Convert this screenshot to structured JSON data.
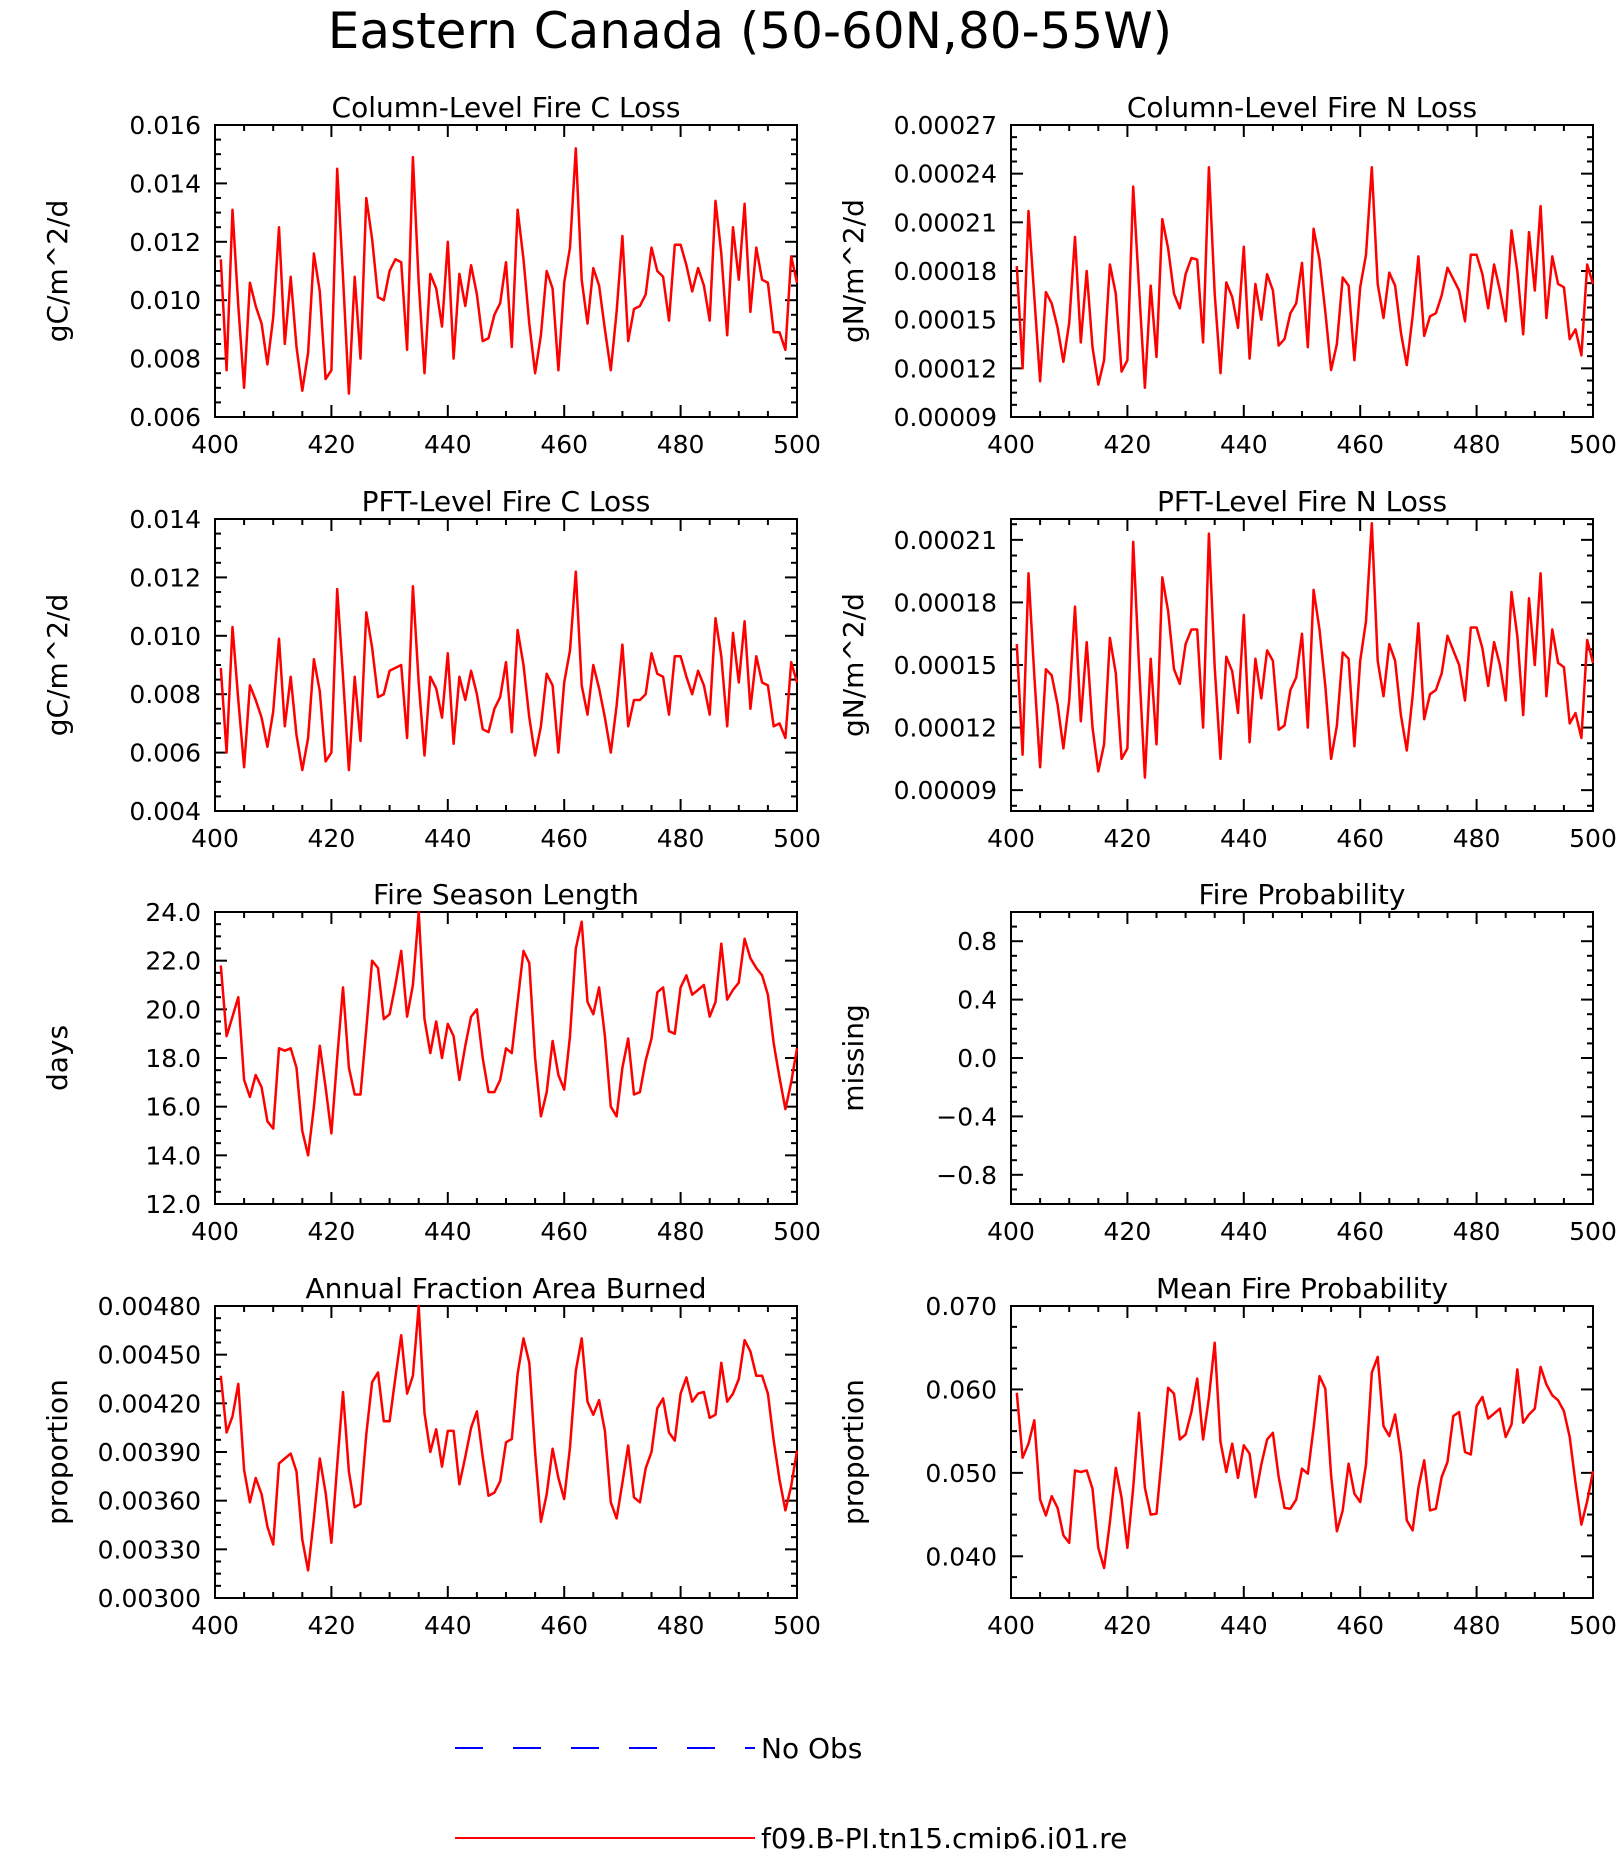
{
  "title": "Eastern Canada (50-60N,80-55W)",
  "colors": {
    "model": "#ff0000",
    "obs": "#0000ff"
  },
  "legend": {
    "position": "bottom-center",
    "entries": [
      {
        "label": "No Obs",
        "style": "dashed",
        "color": "#0000ff"
      },
      {
        "label": "f09.B-PI.tn15.cmip6.j01.re",
        "style": "solid",
        "color": "#ff0000"
      }
    ]
  },
  "chart_data": [
    {
      "type": "line",
      "title": "Column-Level Fire C Loss",
      "ylabel": "gC/m^2/d",
      "xlim": [
        400,
        500
      ],
      "ylim": [
        0.006,
        0.016
      ],
      "xticks": [
        "400",
        "420",
        "440",
        "460",
        "480",
        "500"
      ],
      "yticks": [
        "0.006",
        "0.008",
        "0.010",
        "0.012",
        "0.014",
        "0.016"
      ],
      "x_start": 401,
      "series": [
        {
          "values": [
            0.0114,
            0.0076,
            0.0131,
            0.0098,
            0.007,
            0.0106,
            0.0098,
            0.0092,
            0.0078,
            0.0094,
            0.0125,
            0.0085,
            0.0108,
            0.0084,
            0.0069,
            0.0082,
            0.0116,
            0.0103,
            0.0073,
            0.0076,
            0.0145,
            0.0108,
            0.0068,
            0.0108,
            0.008,
            0.0135,
            0.0121,
            0.0101,
            0.01,
            0.011,
            0.0114,
            0.0113,
            0.0083,
            0.0149,
            0.0106,
            0.0075,
            0.0109,
            0.0104,
            0.0091,
            0.012,
            0.008,
            0.0109,
            0.0098,
            0.0112,
            0.0102,
            0.0086,
            0.0087,
            0.0095,
            0.0099,
            0.0113,
            0.0084,
            0.0131,
            0.0114,
            0.0092,
            0.0075,
            0.0088,
            0.011,
            0.0104,
            0.0076,
            0.0106,
            0.0118,
            0.0152,
            0.0107,
            0.0092,
            0.0111,
            0.0105,
            0.009,
            0.0076,
            0.0096,
            0.0122,
            0.0086,
            0.0097,
            0.0098,
            0.0102,
            0.0118,
            0.011,
            0.0108,
            0.0093,
            0.0119,
            0.0119,
            0.0112,
            0.0103,
            0.0111,
            0.0105,
            0.0093,
            0.0134,
            0.0116,
            0.0088,
            0.0125,
            0.0107,
            0.0133,
            0.0096,
            0.0118,
            0.0107,
            0.0106,
            0.0089,
            0.0089,
            0.0083,
            0.0115,
            0.0106
          ]
        }
      ]
    },
    {
      "type": "line",
      "title": "Column-Level Fire N Loss",
      "ylabel": "gN/m^2/d",
      "xlim": [
        400,
        500
      ],
      "ylim": [
        9e-05,
        0.00027
      ],
      "xticks": [
        "400",
        "420",
        "440",
        "460",
        "480",
        "500"
      ],
      "yticks": [
        "0.00009",
        "0.00012",
        "0.00015",
        "0.00018",
        "0.00021",
        "0.00024",
        "0.00027"
      ],
      "x_start": 401,
      "series": [
        {
          "values": [
            0.000183,
            0.00012,
            0.000217,
            0.000164,
            0.000112,
            0.000167,
            0.00016,
            0.000145,
            0.000124,
            0.000148,
            0.000201,
            0.000136,
            0.00018,
            0.000133,
            0.00011,
            0.000125,
            0.000184,
            0.000166,
            0.000118,
            0.000125,
            0.000232,
            0.00017,
            0.000108,
            0.000171,
            0.000127,
            0.000212,
            0.000194,
            0.000166,
            0.000157,
            0.000178,
            0.000188,
            0.000187,
            0.000136,
            0.000244,
            0.000166,
            0.000117,
            0.000173,
            0.000164,
            0.000145,
            0.000195,
            0.000126,
            0.000172,
            0.00015,
            0.000178,
            0.000168,
            0.000134,
            0.000138,
            0.000154,
            0.00016,
            0.000185,
            0.000133,
            0.000206,
            0.000187,
            0.000155,
            0.000119,
            0.000135,
            0.000176,
            0.000171,
            0.000125,
            0.00017,
            0.00019,
            0.000244,
            0.000172,
            0.000151,
            0.000179,
            0.000171,
            0.000142,
            0.000122,
            0.000152,
            0.000189,
            0.00014,
            0.000152,
            0.000154,
            0.000165,
            0.000182,
            0.000175,
            0.000168,
            0.000149,
            0.00019,
            0.00019,
            0.000178,
            0.000157,
            0.000184,
            0.000168,
            0.000149,
            0.000205,
            0.00018,
            0.000141,
            0.000204,
            0.000168,
            0.00022,
            0.000151,
            0.000189,
            0.000172,
            0.00017,
            0.000138,
            0.000144,
            0.000128,
            0.000184,
            0.000172
          ]
        }
      ]
    },
    {
      "type": "line",
      "title": "PFT-Level Fire C Loss",
      "ylabel": "gC/m^2/d",
      "xlim": [
        400,
        500
      ],
      "ylim": [
        0.004,
        0.014
      ],
      "xticks": [
        "400",
        "420",
        "440",
        "460",
        "480",
        "500"
      ],
      "yticks": [
        "0.004",
        "0.006",
        "0.008",
        "0.010",
        "0.012",
        "0.014"
      ],
      "x_start": 401,
      "series": [
        {
          "values": [
            0.0089,
            0.006,
            0.0103,
            0.0078,
            0.0055,
            0.0083,
            0.0078,
            0.0072,
            0.0062,
            0.0074,
            0.0099,
            0.0069,
            0.0086,
            0.0066,
            0.0054,
            0.0065,
            0.0092,
            0.0081,
            0.0057,
            0.006,
            0.0116,
            0.0086,
            0.0054,
            0.0086,
            0.0064,
            0.0108,
            0.0096,
            0.0079,
            0.008,
            0.0088,
            0.0089,
            0.009,
            0.0065,
            0.0117,
            0.0084,
            0.0059,
            0.0086,
            0.0082,
            0.0072,
            0.0094,
            0.0063,
            0.0086,
            0.0078,
            0.0088,
            0.008,
            0.0068,
            0.0067,
            0.0075,
            0.0079,
            0.0091,
            0.0067,
            0.0102,
            0.009,
            0.0072,
            0.0059,
            0.0069,
            0.0087,
            0.0083,
            0.006,
            0.0084,
            0.0095,
            0.0122,
            0.0083,
            0.0073,
            0.009,
            0.0082,
            0.0072,
            0.006,
            0.0076,
            0.0097,
            0.0069,
            0.0078,
            0.0078,
            0.008,
            0.0094,
            0.0087,
            0.0086,
            0.0073,
            0.0093,
            0.0093,
            0.0086,
            0.008,
            0.0088,
            0.0083,
            0.0073,
            0.0106,
            0.0093,
            0.0069,
            0.0101,
            0.0084,
            0.0105,
            0.0075,
            0.0093,
            0.0084,
            0.0083,
            0.0069,
            0.007,
            0.0065,
            0.0091,
            0.0084
          ]
        }
      ]
    },
    {
      "type": "line",
      "title": "PFT-Level Fire N Loss",
      "ylabel": "gN/m^2/d",
      "xlim": [
        400,
        500
      ],
      "ylim": [
        8e-05,
        0.00022
      ],
      "xticks": [
        "400",
        "420",
        "440",
        "460",
        "480",
        "500"
      ],
      "yticks": [
        "0.00009",
        "0.00012",
        "0.00015",
        "0.00018",
        "0.00021"
      ],
      "x_start": 401,
      "series": [
        {
          "values": [
            0.00016,
            0.000107,
            0.000194,
            0.000145,
            0.000101,
            0.000148,
            0.000145,
            0.000131,
            0.00011,
            0.000133,
            0.000178,
            0.000123,
            0.000161,
            0.00012,
            9.9e-05,
            0.000112,
            0.000163,
            0.000146,
            0.000105,
            0.00011,
            0.000209,
            0.00015,
            9.6e-05,
            0.000153,
            0.000112,
            0.000192,
            0.000176,
            0.000148,
            0.000141,
            0.00016,
            0.000167,
            0.000167,
            0.00012,
            0.000213,
            0.000149,
            0.000105,
            0.000154,
            0.000147,
            0.000127,
            0.000174,
            0.000113,
            0.000153,
            0.000134,
            0.000157,
            0.000152,
            0.000119,
            0.000121,
            0.000138,
            0.000144,
            0.000165,
            0.00012,
            0.000186,
            0.000167,
            0.00014,
            0.000105,
            0.000121,
            0.000156,
            0.000153,
            0.000111,
            0.000152,
            0.000171,
            0.000218,
            0.000152,
            0.000135,
            0.00016,
            0.000152,
            0.000126,
            0.000109,
            0.000135,
            0.00017,
            0.000124,
            0.000136,
            0.000138,
            0.000146,
            0.000164,
            0.000157,
            0.00015,
            0.000133,
            0.000168,
            0.000168,
            0.000158,
            0.00014,
            0.000161,
            0.00015,
            0.000133,
            0.000185,
            0.000164,
            0.000126,
            0.000182,
            0.00015,
            0.000194,
            0.000135,
            0.000167,
            0.000151,
            0.000149,
            0.000122,
            0.000127,
            0.000115,
            0.000162,
            0.000151
          ]
        }
      ]
    },
    {
      "type": "line",
      "title": "Fire Season Length",
      "ylabel": "days",
      "xlim": [
        400,
        500
      ],
      "ylim": [
        12.0,
        24.0
      ],
      "xticks": [
        "400",
        "420",
        "440",
        "460",
        "480",
        "500"
      ],
      "yticks": [
        "12.0",
        "14.0",
        "16.0",
        "18.0",
        "20.0",
        "22.0",
        "24.0"
      ],
      "x_start": 401,
      "series": [
        {
          "values": [
            21.8,
            18.9,
            19.7,
            20.5,
            17.1,
            16.4,
            17.3,
            16.8,
            15.4,
            15.1,
            18.4,
            18.3,
            18.4,
            17.6,
            15.0,
            14.0,
            16.0,
            18.5,
            16.8,
            14.9,
            18.0,
            20.9,
            17.6,
            16.5,
            16.5,
            19.2,
            22.0,
            21.7,
            19.6,
            19.8,
            21.0,
            22.4,
            19.7,
            21.0,
            24.0,
            19.6,
            18.2,
            19.5,
            18.0,
            19.4,
            18.9,
            17.1,
            18.5,
            19.7,
            20.0,
            18.0,
            16.6,
            16.6,
            17.1,
            18.4,
            18.2,
            20.3,
            22.4,
            21.9,
            18.0,
            15.6,
            16.6,
            18.7,
            17.3,
            16.7,
            18.9,
            22.5,
            23.6,
            20.3,
            19.8,
            20.9,
            18.9,
            16.0,
            15.6,
            17.6,
            18.8,
            16.5,
            16.6,
            17.9,
            18.8,
            20.7,
            20.9,
            19.1,
            19.0,
            20.9,
            21.4,
            20.6,
            20.8,
            21.0,
            19.7,
            20.3,
            22.7,
            20.4,
            20.8,
            21.1,
            22.9,
            22.1,
            21.7,
            21.4,
            20.6,
            18.6,
            17.2,
            15.9,
            17.0,
            18.4
          ]
        }
      ]
    },
    {
      "type": "line",
      "title": "Fire Probability",
      "ylabel": "missing",
      "xlim": [
        400,
        500
      ],
      "ylim": [
        -1.0,
        1.0
      ],
      "xticks": [
        "400",
        "420",
        "440",
        "460",
        "480",
        "500"
      ],
      "yticks": [
        "−0.8",
        "−0.4",
        "0.0",
        "0.4",
        "0.8"
      ],
      "x_start": 401,
      "series": []
    },
    {
      "type": "line",
      "title": "Annual Fraction Area Burned",
      "ylabel": "proportion",
      "xlim": [
        400,
        500
      ],
      "ylim": [
        0.003,
        0.0048
      ],
      "xticks": [
        "400",
        "420",
        "440",
        "460",
        "480",
        "500"
      ],
      "yticks": [
        "0.00300",
        "0.00330",
        "0.00360",
        "0.00390",
        "0.00420",
        "0.00450",
        "0.00480"
      ],
      "x_start": 401,
      "series": [
        {
          "values": [
            0.00437,
            0.00402,
            0.00412,
            0.00432,
            0.00379,
            0.00359,
            0.00374,
            0.00364,
            0.00344,
            0.00333,
            0.00383,
            0.00386,
            0.00389,
            0.00378,
            0.00336,
            0.00317,
            0.00349,
            0.00386,
            0.00365,
            0.00334,
            0.00382,
            0.00427,
            0.00378,
            0.00356,
            0.00358,
            0.00401,
            0.00433,
            0.00439,
            0.00409,
            0.00409,
            0.00436,
            0.00462,
            0.00426,
            0.00437,
            0.0048,
            0.00414,
            0.0039,
            0.00404,
            0.00381,
            0.00403,
            0.00403,
            0.0037,
            0.00387,
            0.00405,
            0.00415,
            0.00387,
            0.00363,
            0.00365,
            0.00372,
            0.00396,
            0.00398,
            0.00438,
            0.0046,
            0.00445,
            0.0039,
            0.00347,
            0.00364,
            0.00392,
            0.00374,
            0.00361,
            0.00393,
            0.0044,
            0.0046,
            0.00421,
            0.00413,
            0.00422,
            0.00403,
            0.00359,
            0.00349,
            0.00371,
            0.00394,
            0.00362,
            0.00359,
            0.0038,
            0.0039,
            0.00417,
            0.00423,
            0.00402,
            0.00397,
            0.00426,
            0.00436,
            0.00421,
            0.00426,
            0.00427,
            0.00411,
            0.00413,
            0.00445,
            0.00421,
            0.00426,
            0.00435,
            0.00459,
            0.00452,
            0.00437,
            0.00437,
            0.00426,
            0.00397,
            0.00373,
            0.00354,
            0.00369,
            0.00391
          ]
        }
      ]
    },
    {
      "type": "line",
      "title": "Mean Fire Probability",
      "ylabel": "proportion",
      "xlim": [
        400,
        500
      ],
      "ylim": [
        0.035,
        0.07
      ],
      "xticks": [
        "400",
        "420",
        "440",
        "460",
        "480",
        "500"
      ],
      "yticks": [
        "0.040",
        "0.050",
        "0.060",
        "0.070"
      ],
      "x_start": 401,
      "series": [
        {
          "values": [
            0.0596,
            0.0518,
            0.0535,
            0.0563,
            0.0468,
            0.0449,
            0.0472,
            0.0458,
            0.0425,
            0.0416,
            0.0503,
            0.0501,
            0.0503,
            0.0481,
            0.041,
            0.0386,
            0.0441,
            0.0506,
            0.047,
            0.041,
            0.0482,
            0.0572,
            0.0482,
            0.045,
            0.0451,
            0.0525,
            0.0602,
            0.0595,
            0.054,
            0.0546,
            0.0573,
            0.0613,
            0.054,
            0.059,
            0.0656,
            0.0537,
            0.0501,
            0.0535,
            0.0494,
            0.0533,
            0.0523,
            0.0471,
            0.051,
            0.054,
            0.0548,
            0.0495,
            0.0458,
            0.0457,
            0.0468,
            0.0505,
            0.0499,
            0.0554,
            0.0616,
            0.0601,
            0.0497,
            0.043,
            0.0455,
            0.0511,
            0.0475,
            0.0465,
            0.051,
            0.062,
            0.0639,
            0.0556,
            0.0544,
            0.057,
            0.0523,
            0.0443,
            0.0431,
            0.0482,
            0.0515,
            0.0455,
            0.0457,
            0.0495,
            0.0513,
            0.0568,
            0.0573,
            0.0525,
            0.0522,
            0.058,
            0.0591,
            0.0565,
            0.0571,
            0.0577,
            0.0543,
            0.0558,
            0.0624,
            0.056,
            0.057,
            0.0577,
            0.0627,
            0.0606,
            0.0593,
            0.0587,
            0.0574,
            0.0543,
            0.0488,
            0.0438,
            0.0466,
            0.0502
          ]
        }
      ]
    }
  ]
}
